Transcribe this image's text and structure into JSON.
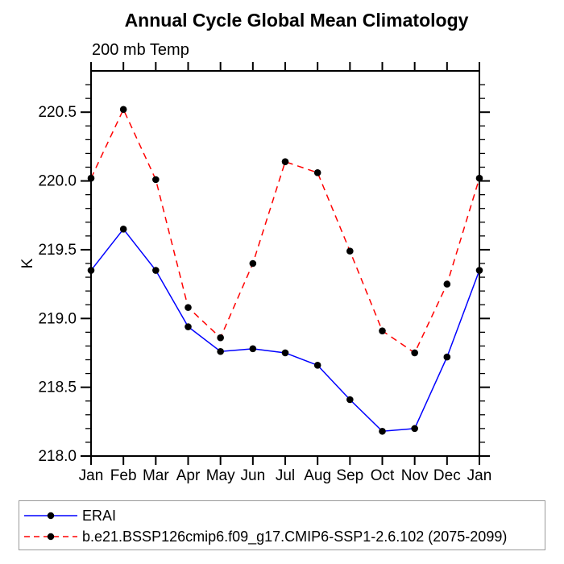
{
  "header": {
    "title": "Annual Cycle Global Mean Climatology",
    "subtitle": "200 mb Temp"
  },
  "chart_data": {
    "type": "line",
    "title": "Annual Cycle Global Mean Climatology",
    "subtitle": "200 mb Temp",
    "xlabel": "",
    "ylabel": "K",
    "categories": [
      "Jan",
      "Feb",
      "Mar",
      "Apr",
      "May",
      "Jun",
      "Jul",
      "Aug",
      "Sep",
      "Oct",
      "Nov",
      "Dec",
      "Jan"
    ],
    "series": [
      {
        "name": "ERAI",
        "color": "#0000ff",
        "style": "solid",
        "marker": "filled-circle",
        "values": [
          219.35,
          219.65,
          219.35,
          218.94,
          218.76,
          218.78,
          218.75,
          218.66,
          218.41,
          218.18,
          218.2,
          218.72,
          219.35
        ]
      },
      {
        "name": "b.e21.BSSP126cmip6.f09_g17.CMIP6-SSP1-2.6.102 (2075-2099)",
        "color": "#ff0000",
        "style": "dashed",
        "marker": "filled-circle",
        "values": [
          220.02,
          220.52,
          220.01,
          219.08,
          218.86,
          219.4,
          220.14,
          220.06,
          219.49,
          218.91,
          218.75,
          219.25,
          220.02
        ]
      }
    ],
    "ylim": [
      218.0,
      220.8
    ],
    "ytick_labels": [
      "218.0",
      "218.5",
      "219.0",
      "219.5",
      "220.0",
      "220.5"
    ],
    "ytick_minor_step": 0.1,
    "grid": false,
    "legend_position": "bottom"
  },
  "colors": {
    "erai_line": "#0000ff",
    "model_line": "#ff0000",
    "marker": "#000000",
    "axis": "#000000",
    "legend_border": "#9a9a9a",
    "background": "#ffffff"
  }
}
